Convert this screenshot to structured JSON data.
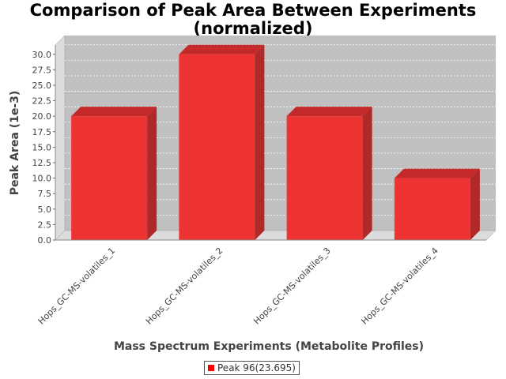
{
  "chart_data": {
    "type": "bar",
    "title": "Comparison of Peak Area Between Experiments",
    "subtitle": "(normalized)",
    "xlabel": "Mass Spectrum Experiments (Metabolite Profiles)",
    "ylabel": "Peak Area (1e-3)",
    "categories": [
      "Hops_GC-MS-volatiles_1",
      "Hops_GC-MS-volatiles_2",
      "Hops_GC-MS-volatiles_3",
      "Hops_GC-MS-volatiles_4"
    ],
    "series": [
      {
        "name": "Peak 96(23.695)",
        "values": [
          20.0,
          30.0,
          20.0,
          10.0
        ],
        "color": "#ff0000"
      }
    ],
    "ylim": [
      0,
      31.5
    ],
    "yticks": [
      "0.0",
      "2.5",
      "5.0",
      "7.5",
      "10.0",
      "12.5",
      "15.0",
      "17.5",
      "20.0",
      "22.5",
      "25.0",
      "27.5",
      "30.0"
    ],
    "grid": true,
    "legend": "bottom",
    "plot_background": "#c0c0c0",
    "bar_style": "3d"
  }
}
